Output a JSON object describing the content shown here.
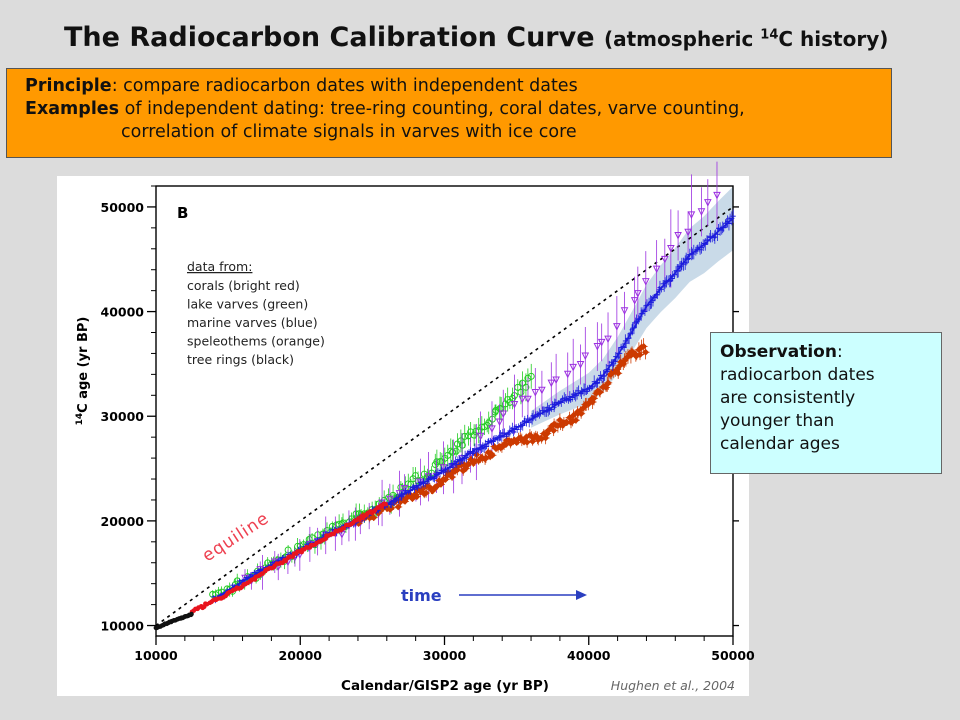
{
  "title": {
    "main": "The Radiocarbon Calibration Curve",
    "sub_open": "(atmospheric ",
    "sub_sup": "14",
    "sub_close": "C history)"
  },
  "principle_box": {
    "line1_bold": "Principle",
    "line1_text": ":  compare radiocarbon dates with independent dates",
    "line2_bold": "Examples",
    "line2_text": " of independent dating:  tree-ring counting, coral dates, varve counting,",
    "line3_text": "correlation of climate signals in varves with ice core"
  },
  "observation_box": {
    "heading": "Observation",
    "heading_colon": ":",
    "lines": [
      "radiocarbon dates",
      "are  consistently",
      "younger than",
      "calendar ages"
    ]
  },
  "chart_data": {
    "type": "scatter",
    "panel_label": "B",
    "xlabel": "Calendar/GISP2 age  (yr BP)",
    "ylabel_sup": "14",
    "ylabel": "C age (yr BP)",
    "xlim": [
      10000,
      50000
    ],
    "ylim": [
      9000,
      52000
    ],
    "x_ticks": [
      10000,
      20000,
      30000,
      40000,
      50000
    ],
    "y_ticks": [
      10000,
      20000,
      30000,
      40000,
      50000
    ],
    "x_tick_labels": [
      "10000",
      "20000",
      "30000",
      "40000",
      "50000"
    ],
    "y_tick_labels": [
      "10000",
      "20000",
      "30000",
      "40000",
      "50000"
    ],
    "legend": {
      "heading": "data from:",
      "entries": [
        "corals (bright red)",
        "lake varves (green)",
        "marine varves (blue)",
        "speleothems (orange)",
        "tree rings (black)"
      ]
    },
    "annotations": {
      "equiline": "equiline",
      "time": "time"
    },
    "credit": "Hughen et al., 2004",
    "equiline": {
      "x": [
        10000,
        50000
      ],
      "y": [
        10000,
        50000
      ]
    },
    "colors": {
      "coral": "#e8141e",
      "lake": "#22cc22",
      "marine": "#1c1cdc",
      "speleo": "#cc3a00",
      "tree": "#111111",
      "violet": "#9b30e0",
      "envelope": "#c0d4e4",
      "time_arrow": "#2a3fc0",
      "equiline_text": "#ee4050"
    },
    "series": [
      {
        "name": "tree rings (black)",
        "color": "#111111",
        "x": [
          10000,
          10500,
          11000,
          11500,
          12000,
          12500
        ],
        "y": [
          9750,
          10050,
          10350,
          10600,
          10850,
          11100
        ]
      },
      {
        "name": "corals (bright red)",
        "color": "#e8141e",
        "x": [
          12500,
          13000,
          13500,
          14000,
          14500,
          15000,
          16000,
          17000,
          18000,
          19000,
          20000,
          21000,
          22000,
          24000,
          26000
        ],
        "y": [
          11300,
          11650,
          12000,
          12350,
          12650,
          13000,
          13800,
          14650,
          15500,
          16300,
          17100,
          17800,
          18600,
          20100,
          21700
        ]
      },
      {
        "name": "lake varves (green)",
        "color": "#22cc22",
        "x": [
          14000,
          16000,
          18000,
          20000,
          22000,
          24000,
          26000,
          28000,
          29000,
          30000,
          31000,
          32000,
          33000,
          34000,
          35000,
          36000
        ],
        "y": [
          12600,
          14200,
          15800,
          17400,
          18900,
          20300,
          21800,
          23900,
          24800,
          25900,
          27100,
          28400,
          29700,
          30900,
          32400,
          33600
        ]
      },
      {
        "name": "marine varves (blue)",
        "color": "#1c1cdc",
        "x": [
          14000,
          16000,
          18000,
          20000,
          22000,
          24000,
          26000,
          28000,
          30000,
          32000,
          34000,
          36000,
          38000,
          40000,
          41000,
          42000,
          43000,
          44000,
          45000,
          46000,
          47000,
          48000,
          49000,
          50000
        ],
        "y": [
          12500,
          14200,
          15800,
          17200,
          18700,
          20100,
          21600,
          23200,
          24800,
          26700,
          28100,
          29700,
          31300,
          32700,
          33900,
          35800,
          38100,
          40500,
          42200,
          43700,
          45400,
          46400,
          47700,
          48900
        ]
      },
      {
        "name": "speleothems (orange)",
        "color": "#cc3a00",
        "x": [
          24000,
          26000,
          27000,
          28000,
          29000,
          30000,
          31000,
          32000,
          33000,
          34000,
          35000,
          36000,
          37000,
          38000,
          39000,
          40000,
          41000,
          42000,
          43000,
          44000
        ],
        "y": [
          19900,
          21300,
          21800,
          22600,
          23100,
          24000,
          24900,
          25800,
          26400,
          27100,
          27800,
          27900,
          28300,
          29300,
          29900,
          31200,
          32800,
          34400,
          36000,
          36400
        ]
      },
      {
        "name": "",
        "color": "#9b30e0",
        "x": [
          16000,
          22000,
          26000,
          30000,
          32000,
          34000,
          35000,
          36000,
          38000,
          40000,
          41500,
          43000,
          44000,
          45000,
          46000,
          47000,
          48000,
          49000
        ],
        "y": [
          14200,
          18400,
          21500,
          24700,
          26500,
          30500,
          31200,
          31800,
          33500,
          36000,
          37800,
          41200,
          42600,
          44600,
          46500,
          48700,
          49800,
          51300
        ]
      }
    ]
  }
}
